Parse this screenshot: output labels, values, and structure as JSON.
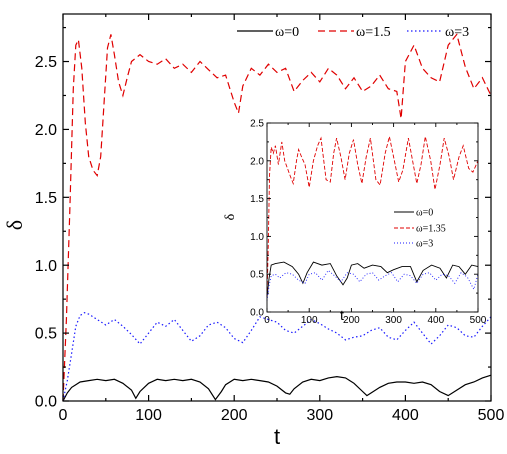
{
  "chart_data": [
    {
      "type": "line",
      "xlabel": "t",
      "ylabel": "δ",
      "xlim": [
        0,
        500
      ],
      "ylim": [
        0,
        2.85
      ],
      "xticks": [
        0,
        100,
        200,
        300,
        400,
        500
      ],
      "xtick_labels": [
        "0",
        "100",
        "200",
        "300",
        "400",
        "500"
      ],
      "yticks": [
        0,
        0.5,
        1.0,
        1.5,
        2.0,
        2.5
      ],
      "ytick_labels": [
        "0.0",
        "0.5",
        "1.0",
        "1.5",
        "2.0",
        "2.5"
      ],
      "legend_position": "top-right",
      "grid": false,
      "series": [
        {
          "name": "ω=0",
          "color": "#000000",
          "style": "solid",
          "x": [
            0,
            5,
            10,
            15,
            20,
            30,
            40,
            50,
            60,
            70,
            80,
            85,
            90,
            100,
            110,
            120,
            130,
            140,
            150,
            160,
            170,
            178,
            185,
            190,
            200,
            210,
            220,
            230,
            240,
            250,
            260,
            265,
            270,
            280,
            290,
            300,
            310,
            320,
            330,
            340,
            350,
            355,
            360,
            370,
            380,
            390,
            400,
            410,
            420,
            430,
            440,
            450,
            460,
            470,
            480,
            490,
            500
          ],
          "y": [
            0,
            0.06,
            0.1,
            0.12,
            0.14,
            0.15,
            0.16,
            0.15,
            0.16,
            0.13,
            0.08,
            0.02,
            0.07,
            0.13,
            0.16,
            0.15,
            0.16,
            0.15,
            0.16,
            0.14,
            0.09,
            0.01,
            0.07,
            0.12,
            0.16,
            0.15,
            0.16,
            0.15,
            0.14,
            0.11,
            0.06,
            0.05,
            0.09,
            0.14,
            0.16,
            0.15,
            0.17,
            0.18,
            0.17,
            0.13,
            0.07,
            0.04,
            0.06,
            0.1,
            0.13,
            0.14,
            0.14,
            0.13,
            0.14,
            0.12,
            0.07,
            0.04,
            0.08,
            0.12,
            0.14,
            0.17,
            0.19
          ]
        },
        {
          "name": "ω=1.5",
          "color": "#e00000",
          "style": "dashed",
          "x": [
            0,
            4,
            8,
            12,
            15,
            18,
            22,
            26,
            30,
            35,
            40,
            44,
            48,
            52,
            56,
            60,
            65,
            70,
            75,
            80,
            90,
            100,
            110,
            120,
            130,
            140,
            150,
            160,
            170,
            180,
            190,
            200,
            205,
            210,
            220,
            230,
            240,
            250,
            260,
            270,
            280,
            290,
            300,
            310,
            320,
            330,
            340,
            350,
            360,
            370,
            380,
            390,
            395,
            400,
            410,
            420,
            430,
            440,
            450,
            460,
            470,
            480,
            490,
            500
          ],
          "y": [
            0,
            0.6,
            1.4,
            2.3,
            2.62,
            2.66,
            2.45,
            2.05,
            1.8,
            1.7,
            1.66,
            1.8,
            2.2,
            2.6,
            2.7,
            2.55,
            2.35,
            2.25,
            2.38,
            2.5,
            2.55,
            2.5,
            2.48,
            2.52,
            2.45,
            2.48,
            2.42,
            2.5,
            2.44,
            2.38,
            2.4,
            2.2,
            2.12,
            2.32,
            2.45,
            2.4,
            2.48,
            2.42,
            2.45,
            2.28,
            2.36,
            2.42,
            2.35,
            2.45,
            2.4,
            2.3,
            2.38,
            2.28,
            2.32,
            2.4,
            2.3,
            2.28,
            2.08,
            2.5,
            2.62,
            2.45,
            2.38,
            2.35,
            2.62,
            2.7,
            2.46,
            2.3,
            2.38,
            2.25
          ]
        },
        {
          "name": "ω=3",
          "color": "#1a1aff",
          "style": "dotted",
          "x": [
            0,
            5,
            10,
            15,
            20,
            25,
            30,
            40,
            50,
            60,
            70,
            80,
            90,
            100,
            110,
            120,
            130,
            140,
            150,
            160,
            170,
            180,
            190,
            200,
            210,
            220,
            230,
            240,
            250,
            260,
            270,
            280,
            290,
            300,
            310,
            320,
            330,
            340,
            350,
            360,
            370,
            380,
            390,
            400,
            410,
            420,
            430,
            440,
            450,
            460,
            470,
            480,
            490,
            500
          ],
          "y": [
            0,
            0.15,
            0.35,
            0.55,
            0.63,
            0.65,
            0.64,
            0.6,
            0.56,
            0.6,
            0.55,
            0.49,
            0.42,
            0.5,
            0.58,
            0.55,
            0.6,
            0.52,
            0.44,
            0.48,
            0.56,
            0.58,
            0.54,
            0.46,
            0.43,
            0.52,
            0.62,
            0.6,
            0.58,
            0.52,
            0.5,
            0.55,
            0.6,
            0.57,
            0.53,
            0.5,
            0.45,
            0.47,
            0.48,
            0.52,
            0.54,
            0.47,
            0.45,
            0.52,
            0.58,
            0.5,
            0.42,
            0.48,
            0.56,
            0.54,
            0.48,
            0.47,
            0.55,
            0.62
          ]
        }
      ]
    },
    {
      "type": "line",
      "inset": true,
      "xlabel": "t",
      "ylabel": "δ",
      "xlim": [
        0,
        500
      ],
      "ylim": [
        0,
        2.5
      ],
      "xticks": [
        0,
        100,
        200,
        300,
        400,
        500
      ],
      "xtick_labels": [
        "0",
        "100",
        "200",
        "300",
        "400",
        "500"
      ],
      "yticks": [
        0,
        0.5,
        1.0,
        1.5,
        2.0,
        2.5
      ],
      "ytick_labels": [
        "0.0",
        "0.5",
        "1.0",
        "1.5",
        "2.0",
        "2.5"
      ],
      "legend_position": "center-right",
      "grid": false,
      "series": [
        {
          "name": "ω=0",
          "color": "#000000",
          "style": "solid",
          "x": [
            0,
            5,
            10,
            20,
            40,
            60,
            75,
            85,
            95,
            110,
            130,
            150,
            165,
            180,
            190,
            200,
            215,
            230,
            250,
            270,
            285,
            300,
            320,
            340,
            355,
            370,
            390,
            410,
            425,
            440,
            455,
            470,
            485,
            500
          ],
          "y": [
            0.2,
            0.45,
            0.62,
            0.64,
            0.66,
            0.6,
            0.5,
            0.38,
            0.52,
            0.66,
            0.62,
            0.64,
            0.48,
            0.36,
            0.45,
            0.62,
            0.64,
            0.58,
            0.62,
            0.6,
            0.52,
            0.56,
            0.6,
            0.6,
            0.4,
            0.55,
            0.62,
            0.58,
            0.45,
            0.62,
            0.6,
            0.5,
            0.62,
            0.6
          ]
        },
        {
          "name": "ω=1.35",
          "color": "#e00000",
          "style": "dashed",
          "x": [
            0,
            3,
            6,
            10,
            15,
            20,
            27,
            35,
            42,
            55,
            62,
            70,
            75,
            82,
            90,
            100,
            110,
            120,
            128,
            140,
            150,
            158,
            165,
            175,
            185,
            195,
            205,
            215,
            225,
            235,
            245,
            258,
            268,
            280,
            290,
            300,
            312,
            322,
            335,
            345,
            355,
            365,
            375,
            388,
            398,
            410,
            420,
            432,
            442,
            455,
            465,
            478,
            488,
            500
          ],
          "y": [
            0.2,
            0.9,
            1.8,
            2.18,
            2.1,
            2.2,
            1.95,
            2.25,
            2.0,
            1.8,
            1.7,
            2.0,
            2.15,
            2.05,
            1.95,
            1.65,
            2.0,
            2.2,
            2.3,
            1.75,
            1.72,
            2.1,
            2.3,
            2.05,
            1.75,
            2.1,
            2.28,
            1.95,
            1.7,
            2.05,
            2.3,
            1.75,
            1.68,
            2.1,
            2.32,
            2.05,
            1.72,
            1.88,
            2.3,
            2.0,
            1.7,
            1.95,
            2.32,
            2.0,
            1.62,
            1.95,
            2.3,
            2.05,
            1.75,
            2.05,
            2.2,
            1.9,
            1.85,
            2.0
          ]
        },
        {
          "name": "ω=3",
          "color": "#1a1aff",
          "style": "dotted",
          "x": [
            0,
            5,
            10,
            20,
            30,
            45,
            60,
            75,
            90,
            100,
            115,
            130,
            145,
            160,
            175,
            190,
            205,
            220,
            235,
            250,
            265,
            280,
            295,
            310,
            325,
            340,
            355,
            370,
            385,
            400,
            415,
            430,
            445,
            460,
            475,
            490,
            500
          ],
          "y": [
            0.15,
            0.35,
            0.48,
            0.5,
            0.45,
            0.52,
            0.5,
            0.42,
            0.38,
            0.5,
            0.52,
            0.42,
            0.55,
            0.48,
            0.4,
            0.52,
            0.5,
            0.4,
            0.5,
            0.52,
            0.42,
            0.48,
            0.52,
            0.4,
            0.5,
            0.48,
            0.38,
            0.5,
            0.52,
            0.42,
            0.5,
            0.48,
            0.38,
            0.52,
            0.46,
            0.3,
            0.5
          ]
        }
      ]
    }
  ]
}
